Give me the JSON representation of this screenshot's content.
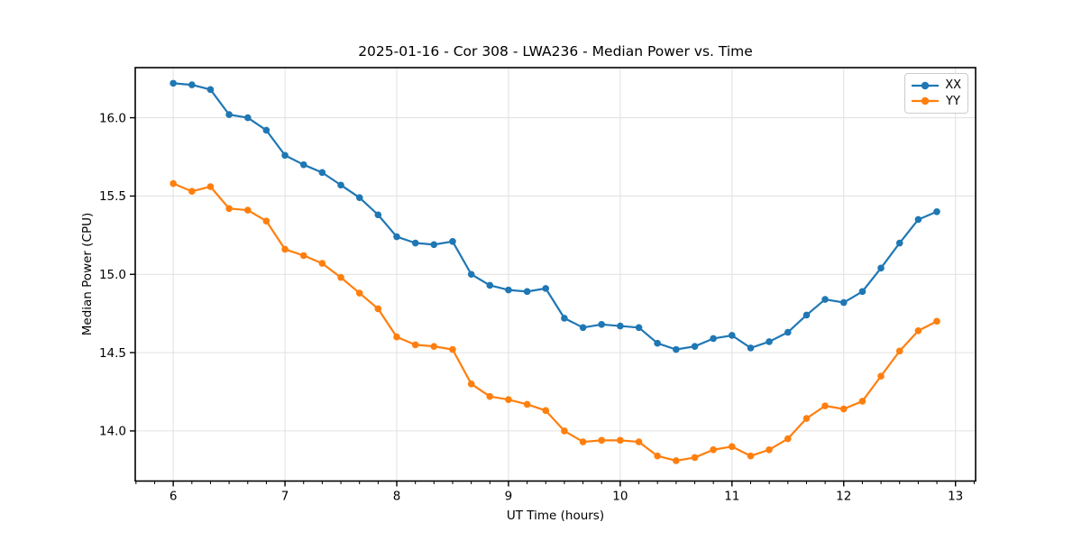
{
  "chart_data": {
    "type": "line",
    "title": "2025-01-16 - Cor 308 - LWA236 - Median Power vs. Time",
    "xlabel": "UT Time (hours)",
    "ylabel": "Median Power (CPU)",
    "xlim": [
      5.66,
      13.18
    ],
    "ylim": [
      13.68,
      16.32
    ],
    "grid": true,
    "legend_position": "upper right",
    "xticks": [
      6,
      7,
      8,
      9,
      10,
      11,
      12,
      13
    ],
    "xtick_labels": [
      "6",
      "7",
      "8",
      "9",
      "10",
      "11",
      "12",
      "13"
    ],
    "x_minor_step": 0.16667,
    "yticks": [
      14.0,
      14.5,
      15.0,
      15.5,
      16.0
    ],
    "ytick_labels": [
      "14.0",
      "14.5",
      "15.0",
      "15.5",
      "16.0"
    ],
    "x": [
      6.0,
      6.167,
      6.333,
      6.5,
      6.667,
      6.833,
      7.0,
      7.167,
      7.333,
      7.5,
      7.667,
      7.833,
      8.0,
      8.167,
      8.333,
      8.5,
      8.667,
      8.833,
      9.0,
      9.167,
      9.333,
      9.5,
      9.667,
      9.833,
      10.0,
      10.167,
      10.333,
      10.5,
      10.667,
      10.833,
      11.0,
      11.167,
      11.333,
      11.5,
      11.667,
      11.833,
      12.0,
      12.167,
      12.333,
      12.5,
      12.667,
      12.833
    ],
    "series": [
      {
        "name": "XX",
        "color": "#1f77b4",
        "values": [
          16.22,
          16.21,
          16.18,
          16.02,
          16.0,
          15.92,
          15.76,
          15.7,
          15.65,
          15.57,
          15.49,
          15.38,
          15.24,
          15.2,
          15.19,
          15.21,
          15.0,
          14.93,
          14.9,
          14.89,
          14.91,
          14.72,
          14.66,
          14.68,
          14.67,
          14.66,
          14.56,
          14.52,
          14.54,
          14.59,
          14.61,
          14.53,
          14.57,
          14.63,
          14.74,
          14.84,
          14.82,
          14.89,
          15.04,
          15.2,
          15.35,
          15.4
        ]
      },
      {
        "name": "YY",
        "color": "#ff7f0e",
        "values": [
          15.58,
          15.53,
          15.56,
          15.42,
          15.41,
          15.34,
          15.16,
          15.12,
          15.07,
          14.98,
          14.88,
          14.78,
          14.6,
          14.55,
          14.54,
          14.52,
          14.3,
          14.22,
          14.2,
          14.17,
          14.13,
          14.0,
          13.93,
          13.94,
          13.94,
          13.93,
          13.84,
          13.81,
          13.83,
          13.88,
          13.9,
          13.84,
          13.88,
          13.95,
          14.08,
          14.16,
          14.14,
          14.19,
          14.35,
          14.51,
          14.64,
          14.7
        ]
      }
    ],
    "style": {
      "grid_color": "#e0e0e0",
      "spine_color": "#000000",
      "marker_radius": 3.8,
      "line_width": 2.2
    }
  }
}
